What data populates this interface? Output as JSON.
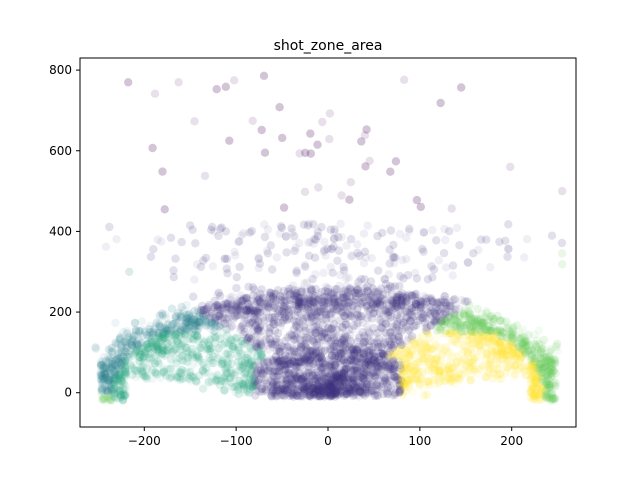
{
  "chart_data": {
    "type": "scatter",
    "title": "shot_zone_area",
    "xlabel": "",
    "ylabel": "",
    "xlim": [
      -270,
      270
    ],
    "ylim": [
      -85,
      830
    ],
    "xticks": [
      -200,
      -100,
      0,
      100,
      200
    ],
    "yticks": [
      0,
      200,
      400,
      600,
      800
    ],
    "grid": false,
    "legend": "none",
    "point_alpha": 0.08,
    "series": [
      {
        "color": "#46337e",
        "region": "center",
        "approx_count": 3200
      },
      {
        "color": "#277f8e",
        "region": "left-center",
        "approx_count": 1500
      },
      {
        "color": "#6ccd5a",
        "region": "right-center",
        "approx_count": 1500
      },
      {
        "color": "#25ab82",
        "region": "left-side",
        "approx_count": 1600
      },
      {
        "color": "#fde725",
        "region": "right-side",
        "approx_count": 1600
      },
      {
        "color": "#440154",
        "region": "back-court",
        "approx_count": 70
      }
    ]
  }
}
